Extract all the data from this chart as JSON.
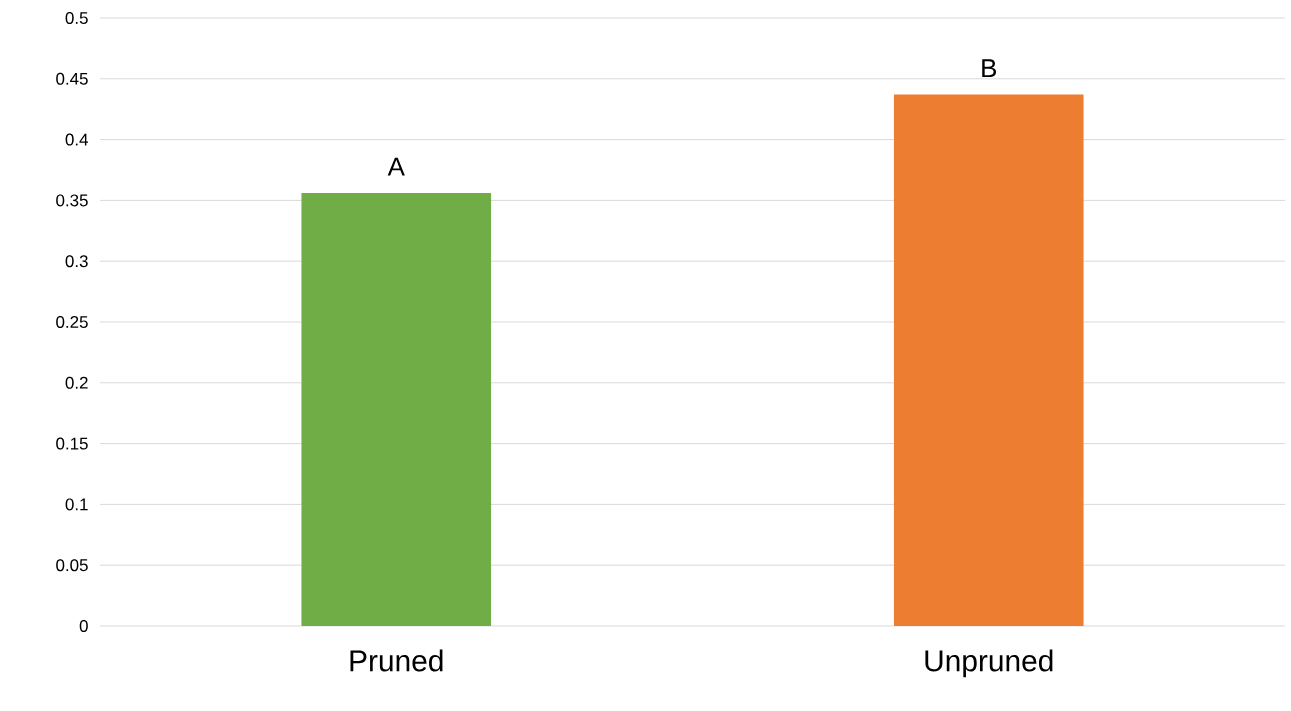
{
  "chart_data": {
    "type": "bar",
    "categories": [
      "Pruned",
      "Unpruned"
    ],
    "values": [
      0.356,
      0.437
    ],
    "colors": [
      "#70ad47",
      "#ed7d31"
    ],
    "ylim": [
      0,
      0.5
    ],
    "yticks": [
      0,
      0.05,
      0.1,
      0.15,
      0.2,
      0.25,
      0.3,
      0.35,
      0.4,
      0.45,
      0.5
    ],
    "grid": "y",
    "annotations": [
      {
        "text": "A",
        "x": "Pruned",
        "y": 0.356
      },
      {
        "text": "B",
        "x": "Unpruned",
        "y": 0.437
      }
    ]
  }
}
